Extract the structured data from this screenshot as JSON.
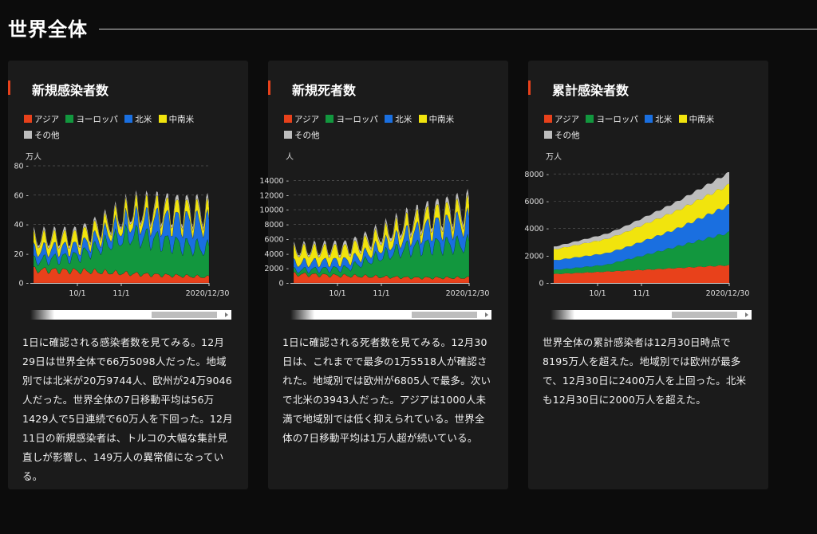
{
  "page_title": "世界全体",
  "legend": [
    {
      "label": "アジア",
      "color": "#e8411b"
    },
    {
      "label": "ヨーロッパ",
      "color": "#12973e"
    },
    {
      "label": "北米",
      "color": "#1a6fe0"
    },
    {
      "label": "中南米",
      "color": "#f1e40d"
    },
    {
      "label": "その他",
      "color": "#bdbdbd"
    }
  ],
  "cards": [
    {
      "title": "新規感染者数",
      "desc": "1日に確認される感染者数を見てみる。12月29日は世界全体で66万5098人だった。地域別では北米が20万9744人、欧州が24万9046人だった。世界全体の7日移動平均は56万1429人で5日連続で60万人を下回った。12月11日の新規感染者は、トルコの大幅な集計見直しが影響し、149万人の異常値になっている。"
    },
    {
      "title": "新規死者数",
      "desc": "1日に確認される死者数を見てみる。12月30日は、これまでで最多の1万5518人が確認された。地域別では欧州が6805人で最多。次いで北米の3943人だった。アジアは1000人未満で地域別では低く抑えられている。世界全体の7日移動平均は1万人超が続いている。"
    },
    {
      "title": "累計感染者数",
      "desc": "世界全体の累計感染者は12月30日時点で8195万人を超えた。地域別では欧州が最多で、12月30日に2400万人を上回った。北米も12月30日に2000万人を超えた。"
    }
  ],
  "chart_data": [
    {
      "type": "area",
      "title": "新規感染者数",
      "ylabel": "万人",
      "x_ticks": [
        "10/1",
        "11/1",
        "2020/12/30"
      ],
      "x_range": [
        "2020-09-01",
        "2020-12-30"
      ],
      "y_ticks": [
        0,
        20,
        40,
        60,
        80
      ],
      "ylim": [
        0,
        80
      ],
      "grid": true,
      "series": [
        {
          "name": "アジア",
          "anchors": [
            [
              0,
              9
            ],
            [
              0.3,
              8
            ],
            [
              0.6,
              6
            ],
            [
              0.8,
              5
            ],
            [
              1,
              4
            ]
          ]
        },
        {
          "name": "ヨーロッパ",
          "anchors": [
            [
              0,
              6
            ],
            [
              0.25,
              10
            ],
            [
              0.45,
              21
            ],
            [
              0.55,
              26
            ],
            [
              0.7,
              24
            ],
            [
              0.85,
              21
            ],
            [
              1,
              19
            ]
          ]
        },
        {
          "name": "北米",
          "anchors": [
            [
              0,
              7
            ],
            [
              0.3,
              6
            ],
            [
              0.5,
              8
            ],
            [
              0.7,
              13
            ],
            [
              0.85,
              16
            ],
            [
              1,
              17
            ]
          ]
        },
        {
          "name": "中南米",
          "anchors": [
            [
              0,
              7
            ],
            [
              0.4,
              6
            ],
            [
              0.7,
              7
            ],
            [
              1,
              7
            ]
          ]
        },
        {
          "name": "その他",
          "anchors": [
            [
              0,
              2
            ],
            [
              0.5,
              2
            ],
            [
              1,
              3
            ]
          ]
        }
      ]
    },
    {
      "type": "area",
      "title": "新規死者数",
      "ylabel": "人",
      "x_ticks": [
        "10/1",
        "11/1",
        "2020/12/30"
      ],
      "x_range": [
        "2020-09-01",
        "2020-12-30"
      ],
      "y_ticks": [
        0,
        2000,
        4000,
        6000,
        8000,
        10000,
        12000,
        14000
      ],
      "ylim": [
        0,
        16000
      ],
      "grid": true,
      "series": [
        {
          "name": "アジア",
          "anchors": [
            [
              0,
              1200
            ],
            [
              0.4,
              900
            ],
            [
              0.7,
              700
            ],
            [
              1,
              700
            ]
          ]
        },
        {
          "name": "ヨーロッパ",
          "anchors": [
            [
              0,
              500
            ],
            [
              0.3,
              1000
            ],
            [
              0.5,
              2800
            ],
            [
              0.65,
              4000
            ],
            [
              0.8,
              4500
            ],
            [
              1,
              4500
            ]
          ]
        },
        {
          "name": "北米",
          "anchors": [
            [
              0,
              1000
            ],
            [
              0.4,
              1000
            ],
            [
              0.6,
              1500
            ],
            [
              0.8,
              2500
            ],
            [
              1,
              3000
            ]
          ]
        },
        {
          "name": "中南米",
          "anchors": [
            [
              0,
              1600
            ],
            [
              0.4,
              1500
            ],
            [
              0.7,
              1400
            ],
            [
              1,
              1600
            ]
          ]
        },
        {
          "name": "その他",
          "anchors": [
            [
              0,
              300
            ],
            [
              0.5,
              500
            ],
            [
              1,
              700
            ]
          ]
        }
      ]
    },
    {
      "type": "area",
      "title": "累計感染者数",
      "ylabel": "万人",
      "x_ticks": [
        "10/1",
        "11/1",
        "2020/12/30"
      ],
      "x_range": [
        "2020-09-01",
        "2020-12-30"
      ],
      "y_ticks": [
        0,
        2000,
        4000,
        6000,
        8000
      ],
      "ylim": [
        0,
        8600
      ],
      "grid": true,
      "series": [
        {
          "name": "アジア",
          "anchors": [
            [
              0,
              650
            ],
            [
              0.5,
              950
            ],
            [
              1,
              1300
            ]
          ]
        },
        {
          "name": "ヨーロッパ",
          "anchors": [
            [
              0,
              300
            ],
            [
              0.3,
              500
            ],
            [
              0.6,
              1300
            ],
            [
              1,
              2400
            ]
          ]
        },
        {
          "name": "北米",
          "anchors": [
            [
              0,
              700
            ],
            [
              0.4,
              900
            ],
            [
              0.7,
              1300
            ],
            [
              1,
              2000
            ]
          ]
        },
        {
          "name": "中南米",
          "anchors": [
            [
              0,
              800
            ],
            [
              0.5,
              1200
            ],
            [
              1,
              1500
            ]
          ]
        },
        {
          "name": "その他",
          "anchors": [
            [
              0,
              200
            ],
            [
              0.5,
              500
            ],
            [
              1,
              900
            ]
          ]
        }
      ]
    }
  ]
}
